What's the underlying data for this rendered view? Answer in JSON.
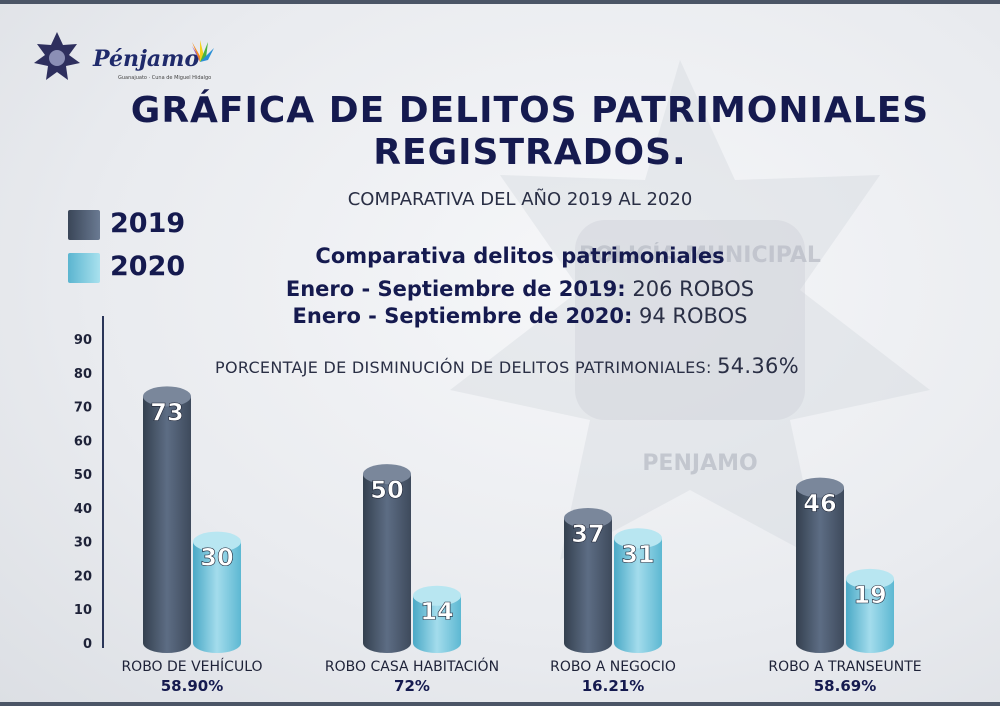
{
  "header": {
    "brand": "Pénjamo",
    "brand_tagline": "Guanajuato · Cuna de Miguel Hidalgo",
    "badge_text": "POLICÍA MUNICIPAL",
    "watermark_city": "PENJAMO",
    "title_line1": "GRÁFICA DE DELITOS PATRIMONIALES",
    "title_line2": "REGISTRADOS.",
    "subtitle": "COMPARATIVA DEL AÑO 2019 AL  2020"
  },
  "legend": [
    {
      "label": "2019",
      "color": "#4a5a70"
    },
    {
      "label": "2020",
      "color": "#6fc4dc"
    }
  ],
  "summary": {
    "heading": "Comparativa delitos patrimoniales",
    "line1_label": "Enero - Septiembre de 2019:",
    "line1_value": "206 ROBOS",
    "line2_label": "Enero - Septiembre de 2020:",
    "line2_value": "94 ROBOS",
    "pct_label": "PORCENTAJE DE DISMINUCIÓN DE DELITOS PATRIMONIALES:",
    "pct_value": "54.36%"
  },
  "chart_data": {
    "type": "bar",
    "title": "GRÁFICA DE DELITOS PATRIMONIALES REGISTRADOS.",
    "categories": [
      "ROBO DE VEHÍCULO",
      "ROBO CASA HABITACIÓN",
      "ROBO A NEGOCIO",
      "ROBO A TRANSEUNTE"
    ],
    "category_pcts": [
      "58.90%",
      "72%",
      "16.21%",
      "58.69%"
    ],
    "series": [
      {
        "name": "2019",
        "values": [
          73,
          50,
          37,
          46
        ],
        "color": "#4a5a70"
      },
      {
        "name": "2020",
        "values": [
          30,
          14,
          31,
          19
        ],
        "color": "#6fc4dc"
      }
    ],
    "yticks": [
      0,
      10,
      20,
      30,
      40,
      50,
      60,
      70,
      80,
      90
    ],
    "ylim": [
      0,
      90
    ],
    "grid": false,
    "legend_position": "top-left"
  }
}
